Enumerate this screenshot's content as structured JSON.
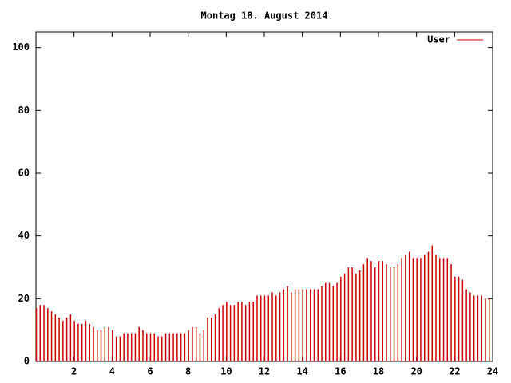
{
  "chart_data": {
    "type": "impulses",
    "title": "Montag 18. August 2014",
    "x": [
      0,
      0.2,
      0.4,
      0.6,
      0.8,
      1,
      1.2,
      1.4,
      1.6,
      1.8,
      2,
      2.2,
      2.4,
      2.6,
      2.8,
      3,
      3.2,
      3.4,
      3.6,
      3.8,
      4,
      4.2,
      4.4,
      4.6,
      4.8,
      5,
      5.2,
      5.4,
      5.6,
      5.8,
      6,
      6.2,
      6.4,
      6.6,
      6.8,
      7,
      7.2,
      7.4,
      7.6,
      7.8,
      8,
      8.2,
      8.4,
      8.6,
      8.8,
      9,
      9.2,
      9.4,
      9.6,
      9.8,
      10,
      10.2,
      10.4,
      10.6,
      10.8,
      11,
      11.2,
      11.4,
      11.6,
      11.8,
      12,
      12.2,
      12.4,
      12.6,
      12.8,
      13,
      13.2,
      13.4,
      13.6,
      13.8,
      14,
      14.2,
      14.4,
      14.6,
      14.8,
      15,
      15.2,
      15.4,
      15.6,
      15.8,
      16,
      16.2,
      16.4,
      16.6,
      16.8,
      17,
      17.2,
      17.4,
      17.6,
      17.8,
      18,
      18.2,
      18.4,
      18.6,
      18.8,
      19,
      19.2,
      19.4,
      19.6,
      19.8,
      20,
      20.2,
      20.4,
      20.6,
      20.8,
      21,
      21.2,
      21.4,
      21.6,
      21.8,
      22,
      22.2,
      22.4,
      22.6,
      22.8,
      23,
      23.2,
      23.4,
      23.6,
      23.8
    ],
    "series": [
      {
        "name": "User",
        "color": "#cc0000",
        "values": [
          17,
          18,
          18,
          17,
          16,
          15,
          14,
          13,
          14,
          15,
          13,
          12,
          12,
          13,
          12,
          11,
          10,
          10,
          11,
          11,
          10,
          8,
          8,
          9,
          9,
          9,
          9,
          11,
          10,
          9,
          9,
          9,
          8,
          8,
          9,
          9,
          9,
          9,
          9,
          9,
          10,
          11,
          11,
          9,
          10,
          14,
          14,
          15,
          17,
          18,
          19,
          18,
          18,
          19,
          19,
          18,
          19,
          19,
          21,
          21,
          21,
          21,
          22,
          21,
          22,
          23,
          24,
          22,
          23,
          23,
          23,
          23,
          23,
          23,
          23,
          24,
          25,
          25,
          24,
          25,
          27,
          28,
          30,
          30,
          28,
          29,
          31,
          33,
          32,
          30,
          32,
          32,
          31,
          30,
          30,
          31,
          33,
          34,
          35,
          33,
          33,
          33,
          34,
          35,
          37,
          34,
          33,
          33,
          33,
          31,
          27,
          27,
          26,
          23,
          22,
          21,
          21,
          21,
          20,
          20
        ]
      }
    ],
    "xlim": [
      0,
      24
    ],
    "xticks": [
      2,
      4,
      6,
      8,
      10,
      12,
      14,
      16,
      18,
      20,
      22,
      24
    ],
    "ylim": [
      0,
      105
    ],
    "yticks": [
      0,
      20,
      40,
      60,
      80,
      100
    ],
    "legend": "top-right"
  }
}
